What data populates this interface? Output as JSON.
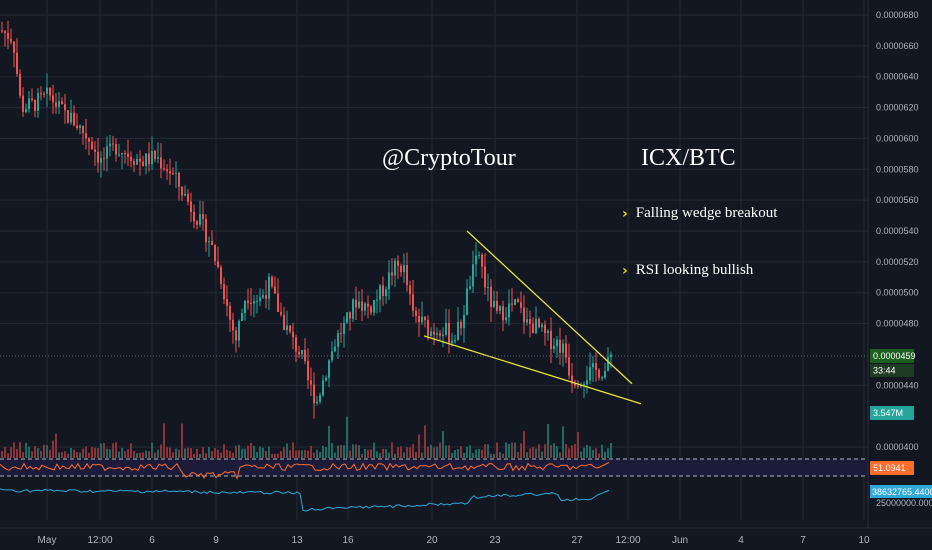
{
  "watermark": "@CryptoTour",
  "pair": "ICX/BTC",
  "bullets": [
    {
      "text": "Falling wedge breakout"
    },
    {
      "text": "RSI looking bullish"
    }
  ],
  "colors": {
    "background": "#131722",
    "grid": "#242834",
    "up": "#26a69a",
    "down": "#ef5350",
    "volume_up": "#1f6b63",
    "volume_down": "#8a3338",
    "trendline": "#e8e43a",
    "rsi_line": "#ff6d2e",
    "rsi_band": "#1c1b3a",
    "obv_line": "#2fa8d8",
    "price_badge": "#1b5e20",
    "volume_badge": "#26a69a",
    "rsi_badge": "#ff6d2e",
    "obv_badge": "#2fa8d8",
    "dashed": "#b2b5be",
    "chevron": "#f2d600"
  },
  "chart_data": {
    "type": "candlestick",
    "symbol": "ICX/BTC",
    "y_ticks": [
      "0.0000680",
      "0.0000660",
      "0.0000640",
      "0.0000620",
      "0.0000600",
      "0.0000580",
      "0.0000560",
      "0.0000540",
      "0.0000520",
      "0.0000500",
      "0.0000480",
      "0.0000440",
      "0.0000400"
    ],
    "y_tick_values": [
      6.8e-05,
      6.6e-05,
      6.4e-05,
      6.2e-05,
      6e-05,
      5.8e-05,
      5.6e-05,
      5.4e-05,
      5.2e-05,
      5e-05,
      4.8e-05,
      4.4e-05,
      4e-05
    ],
    "ylim": [
      4e-05,
      6.83e-05
    ],
    "x_ticks": [
      "May",
      "12:00",
      "6",
      "9",
      "13",
      "16",
      "20",
      "23",
      "27",
      "12:00",
      "Jun",
      "4",
      "7",
      "10"
    ],
    "current_price_label": "0.0000459",
    "current_price": 4.59e-05,
    "countdown_label": "33:44",
    "volume_label": "3.547M",
    "rsi_label": "51.0941",
    "obv_label": "38632765.4400",
    "obv_axis_label": "25000000.0000",
    "price_path": [
      [
        0,
        6.7e-05
      ],
      [
        12,
        6.65e-05
      ],
      [
        20,
        6.2e-05
      ],
      [
        32,
        6.22e-05
      ],
      [
        48,
        6.28e-05
      ],
      [
        60,
        6.18e-05
      ],
      [
        75,
        6.1e-05
      ],
      [
        90,
        5.98e-05
      ],
      [
        100,
        5.85e-05
      ],
      [
        115,
        5.95e-05
      ],
      [
        128,
        5.9e-05
      ],
      [
        140,
        5.85e-05
      ],
      [
        155,
        5.88e-05
      ],
      [
        170,
        5.78e-05
      ],
      [
        182,
        5.65e-05
      ],
      [
        195,
        5.5e-05
      ],
      [
        208,
        5.35e-05
      ],
      [
        220,
        5.1e-05
      ],
      [
        228,
        4.85e-05
      ],
      [
        235,
        4.7e-05
      ],
      [
        245,
        5e-05
      ],
      [
        258,
        4.95e-05
      ],
      [
        268,
        5.05e-05
      ],
      [
        280,
        4.85e-05
      ],
      [
        292,
        4.68e-05
      ],
      [
        300,
        4.6e-05
      ],
      [
        308,
        4.4e-05
      ],
      [
        316,
        4.3e-05
      ],
      [
        325,
        4.5e-05
      ],
      [
        335,
        4.7e-05
      ],
      [
        345,
        4.8e-05
      ],
      [
        355,
        4.95e-05
      ],
      [
        368,
        4.9e-05
      ],
      [
        380,
        5e-05
      ],
      [
        392,
        5.15e-05
      ],
      [
        402,
        5.18e-05
      ],
      [
        412,
        4.85e-05
      ],
      [
        422,
        4.8e-05
      ],
      [
        430,
        4.75e-05
      ],
      [
        440,
        4.78e-05
      ],
      [
        452,
        4.7e-05
      ],
      [
        460,
        4.8e-05
      ],
      [
        468,
        5.05e-05
      ],
      [
        478,
        5.25e-05
      ],
      [
        486,
        5e-05
      ],
      [
        496,
        4.85e-05
      ],
      [
        506,
        4.9e-05
      ],
      [
        516,
        4.92e-05
      ],
      [
        526,
        4.8e-05
      ],
      [
        536,
        4.78e-05
      ],
      [
        546,
        4.7e-05
      ],
      [
        556,
        4.68e-05
      ],
      [
        564,
        4.62e-05
      ],
      [
        570,
        4.45e-05
      ],
      [
        580,
        4.45e-05
      ],
      [
        590,
        4.48e-05
      ],
      [
        598,
        4.5e-05
      ],
      [
        605,
        4.49e-05
      ],
      [
        610,
        4.59e-05
      ]
    ],
    "trendlines": [
      {
        "name": "upper",
        "from": [
          467,
          5.4e-05
        ],
        "to": [
          632,
          4.41e-05
        ]
      },
      {
        "name": "lower",
        "from": [
          424,
          4.72e-05
        ],
        "to": [
          641,
          4.28e-05
        ]
      }
    ]
  }
}
